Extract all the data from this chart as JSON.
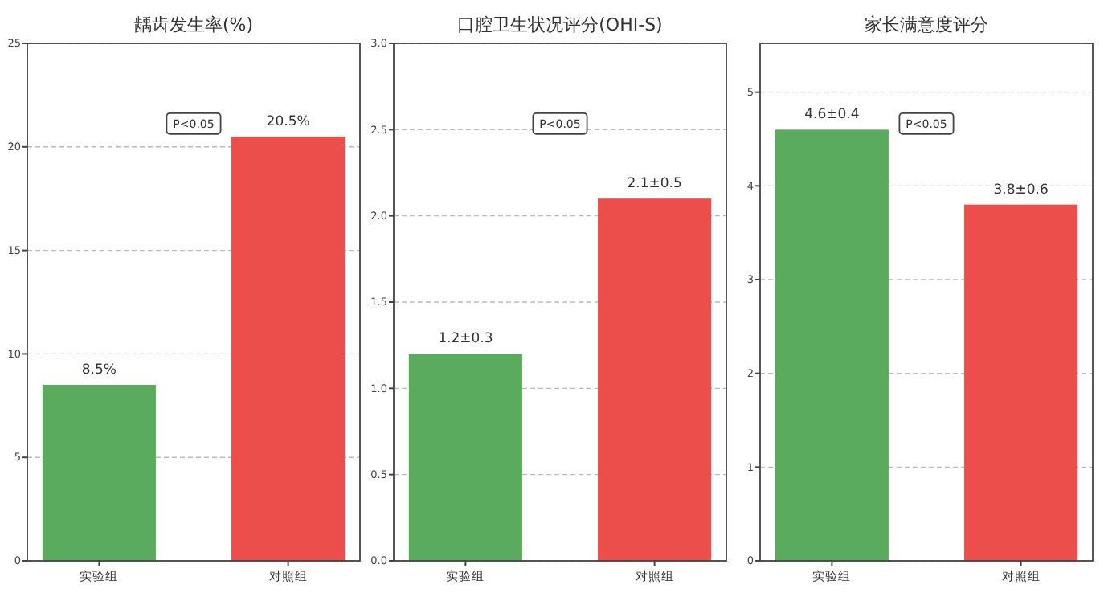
{
  "chart_data": [
    {
      "type": "bar",
      "title": "龋齿发生率(%)",
      "categories": [
        "实验组",
        "对照组"
      ],
      "values": [
        8.5,
        20.5
      ],
      "colors": [
        "#5aab5e",
        "#eb4e4b"
      ],
      "value_labels": [
        "8.5%",
        "20.5%"
      ],
      "ylim": [
        0,
        25
      ],
      "yticks": [
        0,
        5,
        10,
        15,
        20,
        25
      ],
      "grid": "y",
      "annotations": [
        "P<0.05"
      ]
    },
    {
      "type": "bar",
      "title": "口腔卫生状况评分(OHI-S)",
      "categories": [
        "实验组",
        "对照组"
      ],
      "values": [
        1.2,
        2.1
      ],
      "colors": [
        "#5aab5e",
        "#eb4e4b"
      ],
      "value_labels": [
        "1.2±0.3",
        "2.1±0.5"
      ],
      "ylim": [
        0,
        3
      ],
      "yticks": [
        {
          "value": 0,
          "label": "0.0"
        },
        {
          "value": 0.5,
          "label": "0.5"
        },
        {
          "value": 1,
          "label": "1.0"
        },
        {
          "value": 1.5,
          "label": "1.5"
        },
        {
          "value": 2,
          "label": "2.0"
        },
        {
          "value": 2.5,
          "label": "2.5"
        },
        {
          "value": 3,
          "label": "3.0"
        }
      ],
      "grid": "y",
      "annotations": [
        "P<0.05"
      ]
    },
    {
      "type": "bar",
      "title": "家长满意度评分",
      "categories": [
        "实验组",
        "对照组"
      ],
      "values": [
        4.6,
        3.8
      ],
      "colors": [
        "#5aab5e",
        "#eb4e4b"
      ],
      "value_labels": [
        "4.6±0.4",
        "3.8±0.6"
      ],
      "ylim": [
        0,
        5.52
      ],
      "yticks": [
        0,
        1,
        2,
        3,
        4,
        5
      ],
      "grid": "y",
      "annotations": [
        "P<0.05"
      ]
    }
  ]
}
